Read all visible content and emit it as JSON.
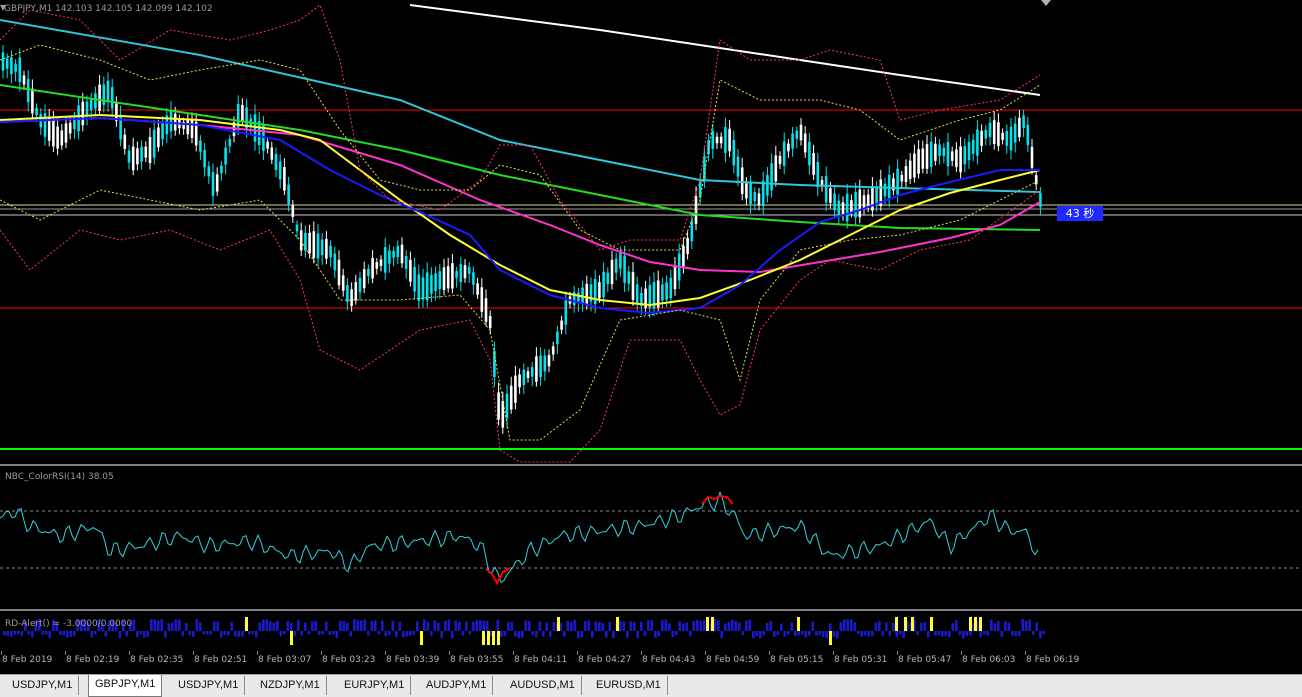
{
  "chart": {
    "main_label": "GBPJPY,M1  142.103 142.105 142.099 142.102",
    "timer_badge": "43 秒",
    "colors": {
      "bull": "#00e5ee",
      "bear": "#ffffff",
      "hline": "#ff0000",
      "support": "#00ff00",
      "ma_blue": "#1a1aff",
      "ma_yellow": "#ffff33",
      "ma_magenta": "#ff33cc",
      "ma_green": "#22dd22",
      "ma_cyan": "#2fc6d8",
      "ma_white": "#ffffff",
      "band_red": "#ff3366",
      "band_yellow": "#dddd55",
      "rsi": "#2fd3e0",
      "rsi_extreme": "#ff0000",
      "alert_blue": "#1a1acc",
      "alert_yellow": "#ffff33"
    }
  },
  "rsi": {
    "label": "NBC_ColorRSI(14) 38.05"
  },
  "alert": {
    "label": "RD-Alert() = -3.0000/0.0000"
  },
  "time_axis": [
    "8 Feb 2019",
    "8 Feb 02:19",
    "8 Feb 02:35",
    "8 Feb 02:51",
    "8 Feb 03:07",
    "8 Feb 03:23",
    "8 Feb 03:39",
    "8 Feb 03:55",
    "8 Feb 04:11",
    "8 Feb 04:27",
    "8 Feb 04:43",
    "8 Feb 04:59",
    "8 Feb 05:15",
    "8 Feb 05:31",
    "8 Feb 05:47",
    "8 Feb 06:03",
    "8 Feb 06:19"
  ],
  "tabs": [
    "USDJPY,M1",
    "GBPJPY,M1",
    "USDJPY,M1",
    "NZDJPY,M1",
    "EURJPY,M1",
    "AUDJPY,M1",
    "AUDUSD,M1",
    "EURUSD,M1"
  ],
  "active_tab": 1
}
